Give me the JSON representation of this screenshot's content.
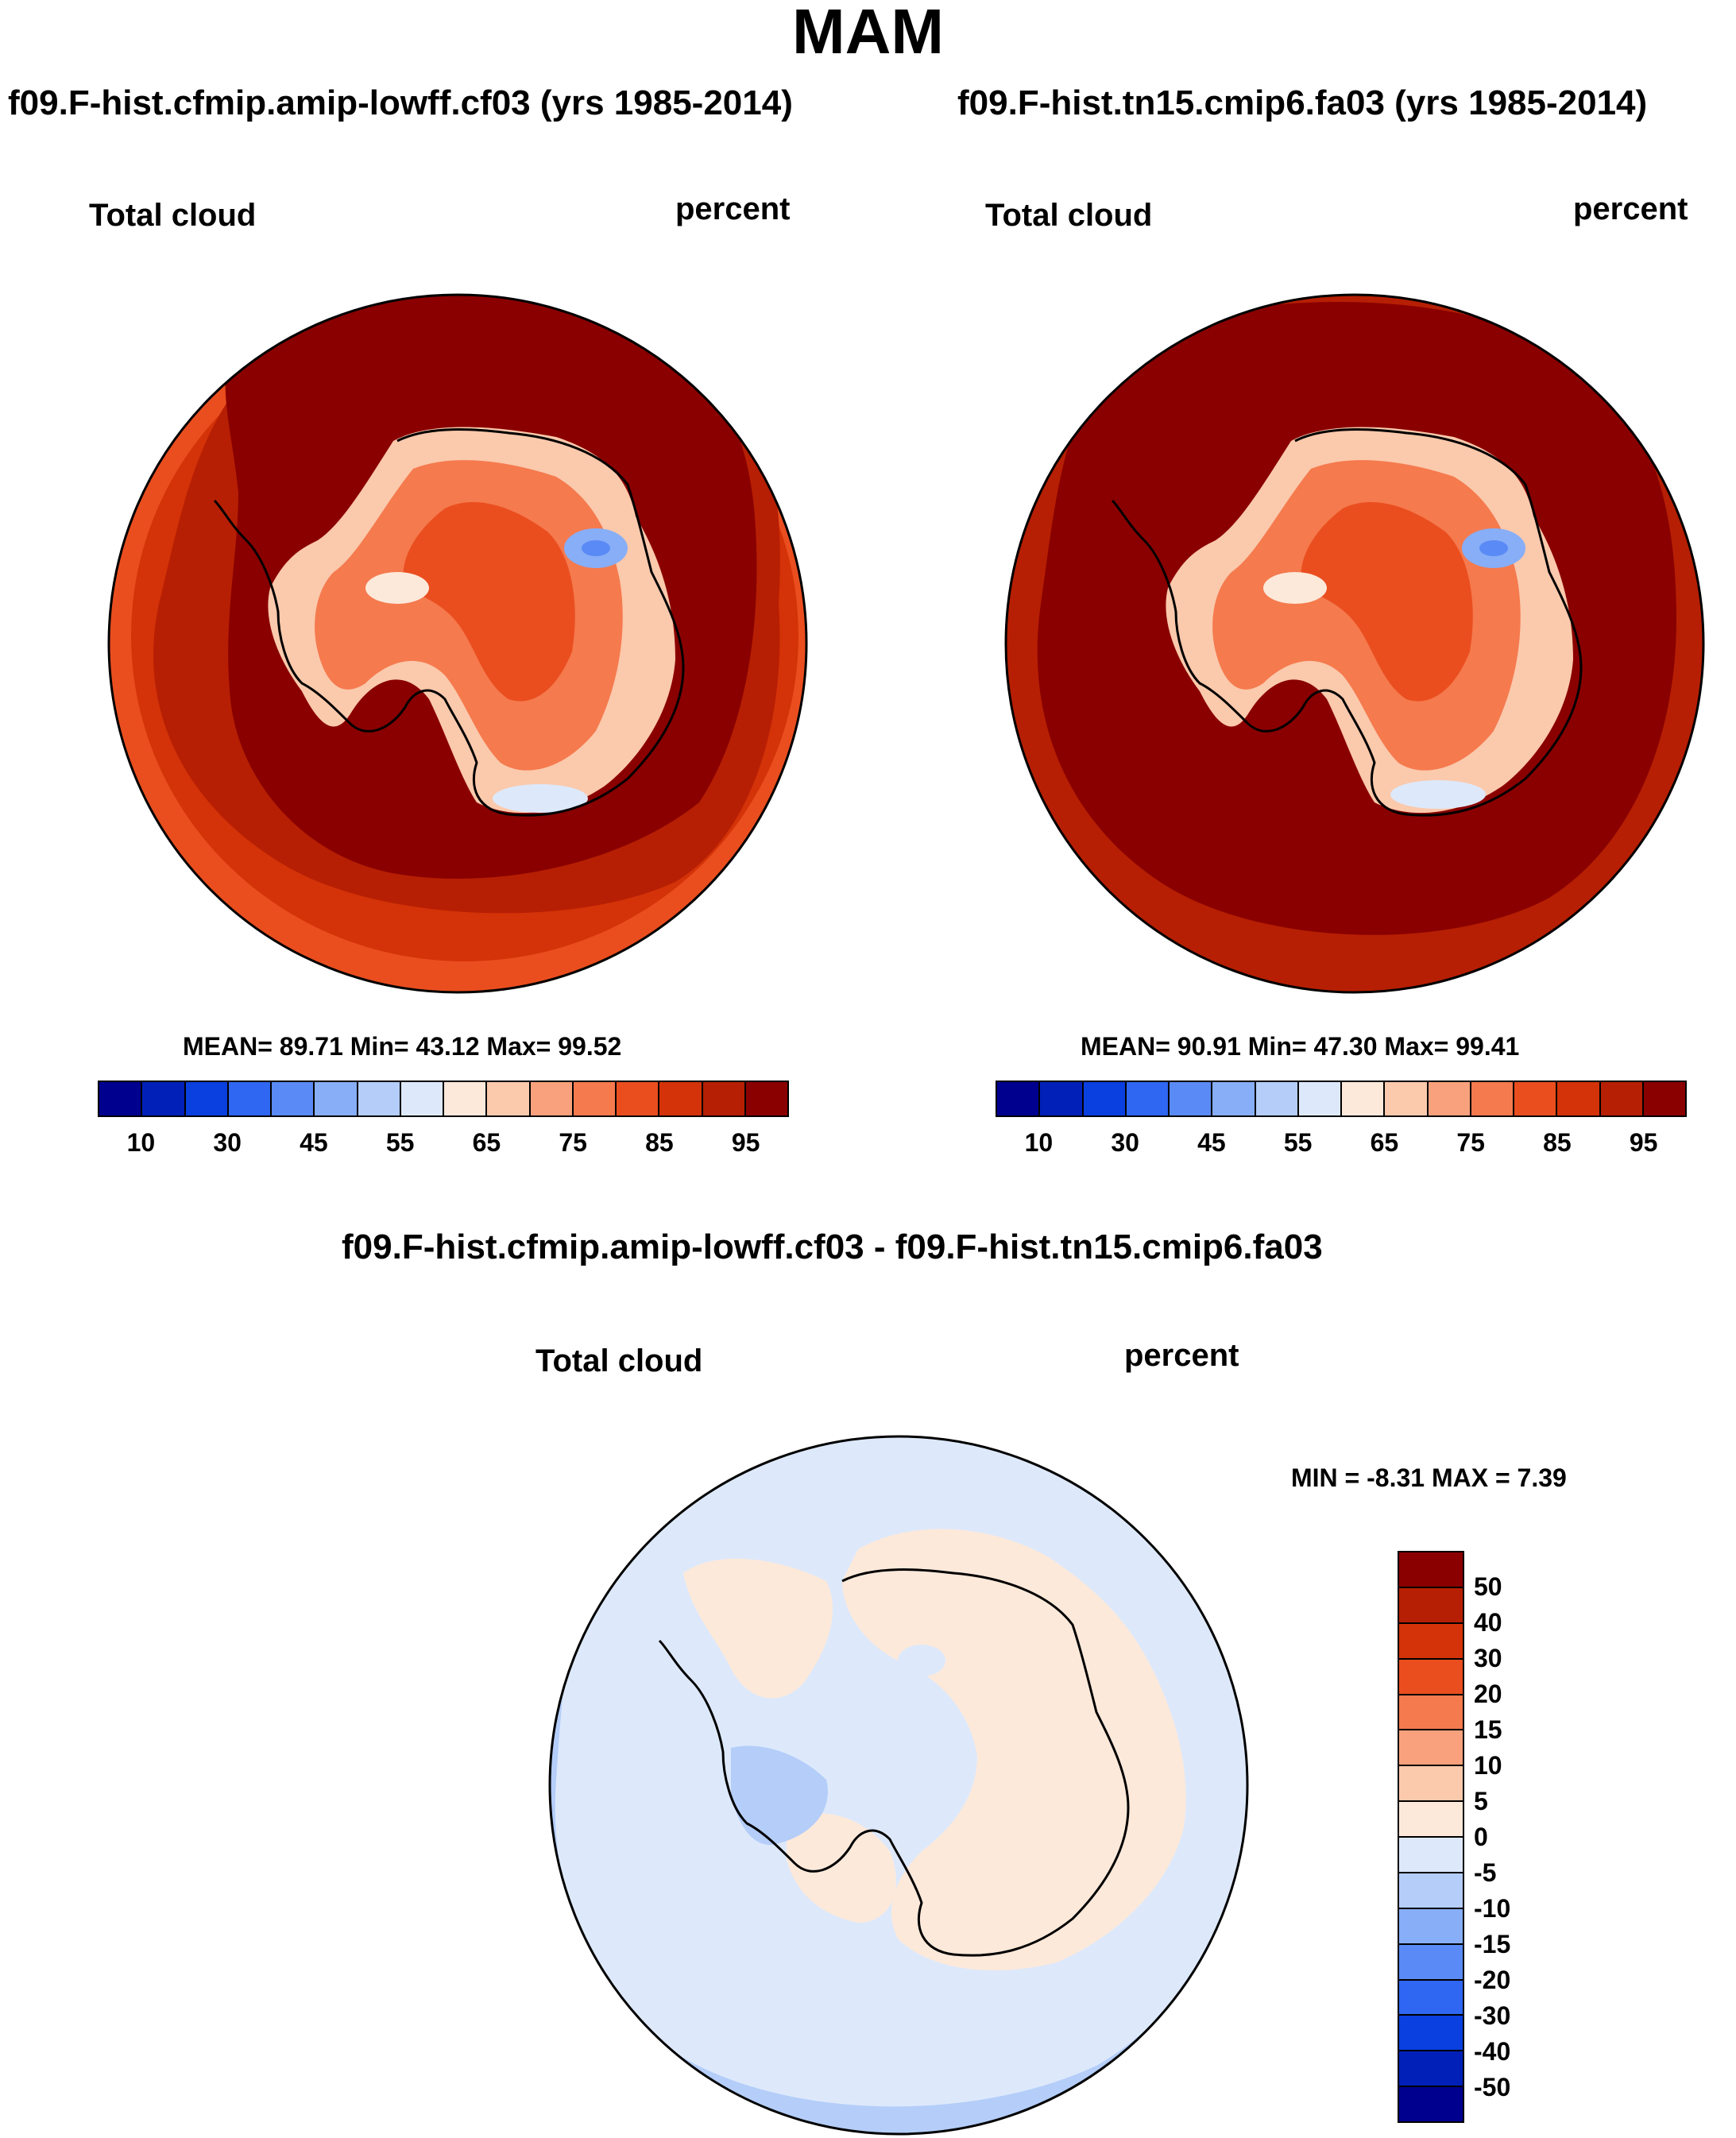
{
  "figure": {
    "title": "MAM"
  },
  "panels": [
    {
      "id": "left",
      "case_title": "f09.F-hist.cfmip.amip-lowff.cf03 (yrs 1985-2014)",
      "variable": "Total cloud",
      "units": "percent",
      "stats_text": "MEAN=  89.71  Min=  43.12  Max=  99.52",
      "colorbar_ticks": [
        "10",
        "30",
        "45",
        "55",
        "65",
        "75",
        "85",
        "95"
      ],
      "colorbar_colors": [
        "#00008f",
        "#0020b8",
        "#0a3fe0",
        "#2f66f2",
        "#5a8af5",
        "#87aef7",
        "#b4cdf9",
        "#dde9fb",
        "#fde9da",
        "#fbc9ac",
        "#f9a17c",
        "#f57a4e",
        "#ea4e1f",
        "#d43208",
        "#b61f03",
        "#8a0000"
      ]
    },
    {
      "id": "right",
      "case_title": "f09.F-hist.tn15.cmip6.fa03 (yrs 1985-2014)",
      "variable": "Total cloud",
      "units": "percent",
      "stats_text": "MEAN=  90.91  Min=  47.30  Max=  99.41",
      "colorbar_ticks": [
        "10",
        "30",
        "45",
        "55",
        "65",
        "75",
        "85",
        "95"
      ],
      "colorbar_colors": [
        "#00008f",
        "#0020b8",
        "#0a3fe0",
        "#2f66f2",
        "#5a8af5",
        "#87aef7",
        "#b4cdf9",
        "#dde9fb",
        "#fde9da",
        "#fbc9ac",
        "#f9a17c",
        "#f57a4e",
        "#ea4e1f",
        "#d43208",
        "#b61f03",
        "#8a0000"
      ]
    },
    {
      "id": "diff",
      "case_title": "f09.F-hist.cfmip.amip-lowff.cf03 - f09.F-hist.tn15.cmip6.fa03",
      "variable": "Total cloud",
      "units": "percent",
      "stats_text": "MIN =  -8.31 MAX =   7.39",
      "colorbar_ticks": [
        "50",
        "40",
        "30",
        "20",
        "15",
        "10",
        "5",
        "0",
        "-5",
        "-10",
        "-15",
        "-20",
        "-30",
        "-40",
        "-50"
      ],
      "colorbar_colors": [
        "#8a0000",
        "#b61f03",
        "#d43208",
        "#ea4e1f",
        "#f57a4e",
        "#f9a17c",
        "#fbc9ac",
        "#fde9da",
        "#dde9fb",
        "#b4cdf9",
        "#87aef7",
        "#5a8af5",
        "#2f66f2",
        "#0a3fe0",
        "#0020b8",
        "#00008f"
      ]
    }
  ]
}
